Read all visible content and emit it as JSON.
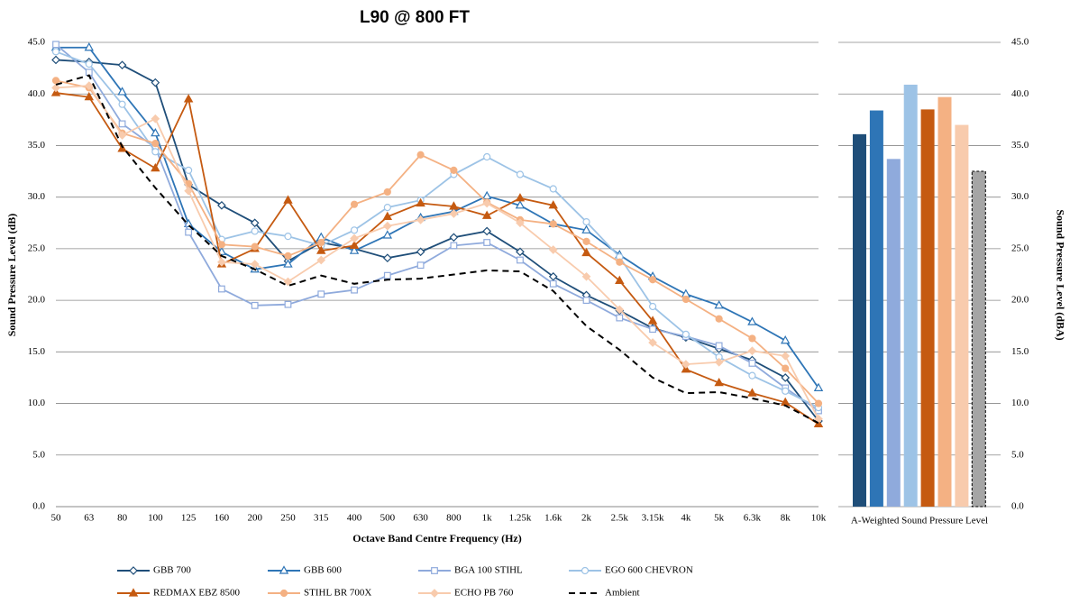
{
  "chart_data": [
    {
      "type": "line",
      "title": "L90 @ 800 FT",
      "x_label": "Octave Band Centre Frequency (Hz)",
      "y_label": "Sound Pressure Level (dB)",
      "categories": [
        "50",
        "63",
        "80",
        "100",
        "125",
        "160",
        "200",
        "250",
        "315",
        "400",
        "500",
        "630",
        "800",
        "1k",
        "1.25k",
        "1.6k",
        "2k",
        "2.5k",
        "3.15k",
        "4k",
        "5k",
        "6.3k",
        "8k",
        "10k"
      ],
      "ylim": [
        0,
        45
      ],
      "yticks": [
        {
          "value": 0,
          "label": "0.0"
        },
        {
          "value": 5,
          "label": "5.0"
        },
        {
          "value": 10,
          "label": "10.0"
        },
        {
          "value": 15,
          "label": "15.0"
        },
        {
          "value": 20,
          "label": "20.0"
        },
        {
          "value": 25,
          "label": "25.0"
        },
        {
          "value": 30,
          "label": "30.0"
        },
        {
          "value": 35,
          "label": "35.0"
        },
        {
          "value": 40,
          "label": "40.0"
        },
        {
          "value": 45,
          "label": "45.0"
        }
      ],
      "grid": true,
      "legend": "bottom",
      "series": [
        {
          "name": "GBB 700",
          "color": "#1f4e79",
          "marker": "diamond",
          "marker_fill": "open",
          "dash": "solid",
          "values": [
            43.3,
            43.1,
            42.8,
            41.1,
            31.2,
            29.2,
            27.5,
            23.8,
            25.6,
            25.0,
            24.1,
            24.7,
            26.1,
            26.7,
            24.7,
            22.3,
            20.5,
            19.0,
            17.3,
            16.4,
            15.3,
            14.2,
            12.5,
            8.3
          ]
        },
        {
          "name": "GBB 600",
          "color": "#2e75b6",
          "marker": "triangle",
          "marker_fill": "open",
          "dash": "solid",
          "values": [
            44.5,
            44.5,
            40.2,
            36.2,
            27.4,
            24.7,
            23.0,
            23.5,
            26.1,
            24.8,
            26.3,
            28.0,
            28.6,
            30.1,
            29.2,
            27.4,
            26.8,
            24.4,
            22.3,
            20.6,
            19.5,
            17.9,
            16.1,
            11.5
          ]
        },
        {
          "name": "BGA 100 STIHL",
          "color": "#8faadc",
          "marker": "square",
          "marker_fill": "open",
          "dash": "solid",
          "values": [
            44.8,
            42.1,
            37.1,
            34.8,
            26.6,
            21.1,
            19.5,
            19.6,
            20.6,
            21.0,
            22.4,
            23.4,
            25.3,
            25.6,
            23.9,
            21.6,
            20.0,
            18.3,
            17.2,
            16.5,
            15.6,
            13.9,
            11.5,
            9.3
          ]
        },
        {
          "name": "EGO 600 CHEVRON",
          "color": "#9dc3e6",
          "marker": "circle",
          "marker_fill": "open",
          "dash": "solid",
          "values": [
            44.1,
            42.9,
            39.0,
            34.4,
            32.6,
            25.9,
            26.7,
            26.2,
            25.3,
            26.8,
            29.0,
            29.7,
            32.2,
            33.9,
            32.2,
            30.8,
            27.6,
            24.2,
            19.4,
            16.7,
            14.5,
            12.7,
            11.2,
            9.6
          ]
        },
        {
          "name": "REDMAX EBZ 8500",
          "color": "#c55a11",
          "marker": "triangle",
          "marker_fill": "solid",
          "dash": "solid",
          "values": [
            40.1,
            39.7,
            34.7,
            32.8,
            39.5,
            23.5,
            25.0,
            29.7,
            24.8,
            25.3,
            28.1,
            29.4,
            29.1,
            28.2,
            29.9,
            29.2,
            24.6,
            21.9,
            18.0,
            13.3,
            12.0,
            11.0,
            10.1,
            8.0
          ]
        },
        {
          "name": "STIHL BR 700X",
          "color": "#f4b183",
          "marker": "circle",
          "marker_fill": "solid",
          "dash": "solid",
          "values": [
            41.3,
            40.6,
            36.2,
            35.2,
            31.3,
            25.4,
            25.2,
            24.3,
            25.6,
            29.3,
            30.5,
            34.1,
            32.6,
            29.5,
            27.8,
            27.4,
            25.7,
            23.7,
            22.0,
            20.1,
            18.2,
            16.3,
            13.4,
            10.0
          ]
        },
        {
          "name": "ECHO PB 760",
          "color": "#f8cbad",
          "marker": "diamond",
          "marker_fill": "solid",
          "dash": "solid",
          "values": [
            40.6,
            40.8,
            36.0,
            37.6,
            30.6,
            23.7,
            23.5,
            21.8,
            23.9,
            26.0,
            27.2,
            27.8,
            28.4,
            29.4,
            27.5,
            24.9,
            22.3,
            19.1,
            15.9,
            13.8,
            14.0,
            15.1,
            14.6,
            8.5
          ]
        },
        {
          "name": "Ambient",
          "color": "#000000",
          "marker": "none",
          "marker_fill": "none",
          "dash": "dashed",
          "values": [
            40.9,
            41.8,
            34.9,
            30.9,
            27.3,
            24.3,
            23.0,
            21.4,
            22.4,
            21.6,
            22.0,
            22.1,
            22.5,
            22.9,
            22.8,
            20.9,
            17.5,
            15.2,
            12.5,
            11.0,
            11.1,
            10.5,
            9.8,
            8.1
          ]
        }
      ]
    },
    {
      "type": "bar",
      "x_label": "A-Weighted Sound Pressure Level",
      "y_label": "Sound Pressure Level (dBA)",
      "ylim": [
        0,
        45
      ],
      "yticks": [
        {
          "value": 0,
          "label": "0.0"
        },
        {
          "value": 5,
          "label": "5.0"
        },
        {
          "value": 10,
          "label": "10.0"
        },
        {
          "value": 15,
          "label": "15.0"
        },
        {
          "value": 20,
          "label": "20.0"
        },
        {
          "value": 25,
          "label": "25.0"
        },
        {
          "value": 30,
          "label": "30.0"
        },
        {
          "value": 35,
          "label": "35.0"
        },
        {
          "value": 40,
          "label": "40.0"
        },
        {
          "value": 45,
          "label": "45.0"
        }
      ],
      "grid": true,
      "values": [
        36.1,
        38.4,
        33.7,
        40.9,
        38.5,
        39.7,
        37.0,
        32.5
      ],
      "colors": [
        "#1f4e79",
        "#2e75b6",
        "#8faadc",
        "#9dc3e6",
        "#c55a11",
        "#f4b183",
        "#f8cbad",
        "#a5a5a5"
      ],
      "bar_dash": [
        false,
        false,
        false,
        false,
        false,
        false,
        false,
        true
      ]
    }
  ]
}
